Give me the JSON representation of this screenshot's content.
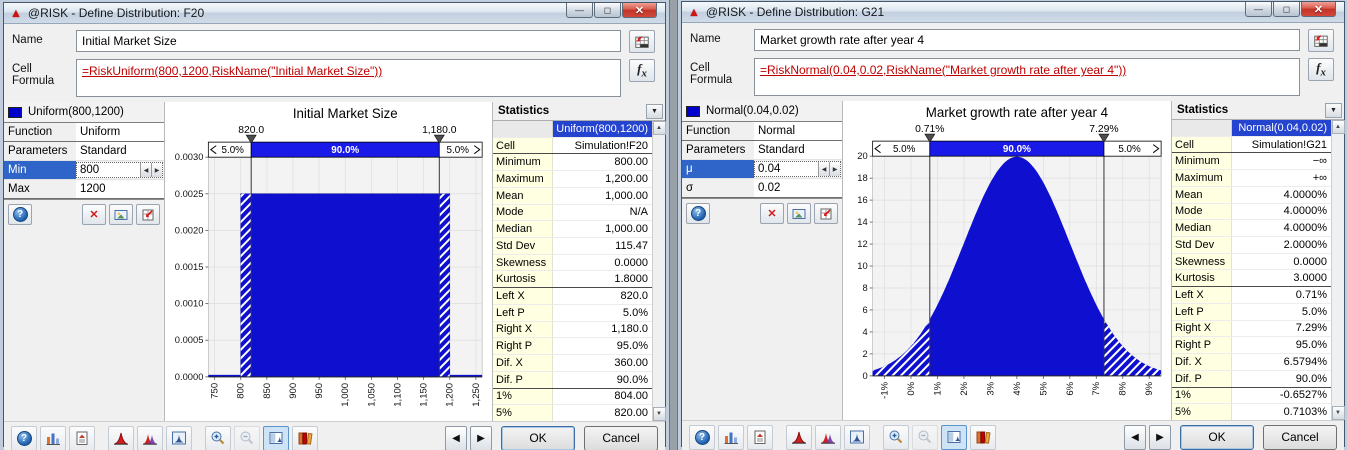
{
  "colors": {
    "formula_red": "#c00000",
    "selection_blue": "#2f65c8",
    "stats_header_blue": "#2443cf",
    "label_yellow": "#ffffe1",
    "swatch_blue": "#0000cc",
    "distribution_fill_blue": "#0f10cf",
    "band_blue": "#1a1ae8"
  },
  "windows": {
    "left": {
      "title": "@RISK - Define Distribution: F20",
      "name_label": "Name",
      "name_value": "Initial Market Size",
      "formula_label": "Cell Formula",
      "formula_value": "=RiskUniform(800,1200,RiskName(\"Initial Market Size\"))",
      "params": {
        "header": "Uniform(800,1200)",
        "function_label": "Function",
        "function_value": "Uniform",
        "parameters_label": "Parameters",
        "parameters_value": "Standard",
        "param1_label": "Min",
        "param1_value": "800",
        "param2_label": "Max",
        "param2_value": "1200"
      },
      "stats": {
        "header": "Statistics",
        "column_header": "Uniform(800,1200)",
        "rows": [
          [
            "Cell",
            "Simulation!F20"
          ],
          [
            "Minimum",
            "800.00"
          ],
          [
            "Maximum",
            "1,200.00"
          ],
          [
            "Mean",
            "1,000.00"
          ],
          [
            "Mode",
            "N/A"
          ],
          [
            "Median",
            "1,000.00"
          ],
          [
            "Std Dev",
            "115.47"
          ],
          [
            "Skewness",
            "0.0000"
          ],
          [
            "Kurtosis",
            "1.8000"
          ],
          [
            "Left X",
            "820.0"
          ],
          [
            "Left P",
            "5.0%"
          ],
          [
            "Right X",
            "1,180.0"
          ],
          [
            "Right P",
            "95.0%"
          ],
          [
            "Dif. X",
            "360.00"
          ],
          [
            "Dif. P",
            "90.0%"
          ],
          [
            "1%",
            "804.00"
          ],
          [
            "5%",
            "820.00"
          ]
        ]
      },
      "buttons": {
        "ok": "OK",
        "cancel": "Cancel"
      }
    },
    "right": {
      "title": "@RISK - Define Distribution: G21",
      "name_label": "Name",
      "name_value": "Market growth rate after year 4",
      "formula_label": "Cell Formula",
      "formula_value": "=RiskNormal(0.04,0.02,RiskName(\"Market growth rate after year 4\"))",
      "params": {
        "header": "Normal(0.04,0.02)",
        "function_label": "Function",
        "function_value": "Normal",
        "parameters_label": "Parameters",
        "parameters_value": "Standard",
        "param1_label": "μ",
        "param1_value": "0.04",
        "param2_label": "σ",
        "param2_value": "0.02"
      },
      "stats": {
        "header": "Statistics",
        "column_header": "Normal(0.04,0.02)",
        "rows": [
          [
            "Cell",
            "Simulation!G21"
          ],
          [
            "Minimum",
            "−∞"
          ],
          [
            "Maximum",
            "+∞"
          ],
          [
            "Mean",
            "4.0000%"
          ],
          [
            "Mode",
            "4.0000%"
          ],
          [
            "Median",
            "4.0000%"
          ],
          [
            "Std Dev",
            "2.0000%"
          ],
          [
            "Skewness",
            "0.0000"
          ],
          [
            "Kurtosis",
            "3.0000"
          ],
          [
            "Left X",
            "0.71%"
          ],
          [
            "Left P",
            "5.0%"
          ],
          [
            "Right X",
            "7.29%"
          ],
          [
            "Right P",
            "95.0%"
          ],
          [
            "Dif. X",
            "6.5794%"
          ],
          [
            "Dif. P",
            "90.0%"
          ],
          [
            "1%",
            "-0.6527%"
          ],
          [
            "5%",
            "0.7103%"
          ]
        ]
      },
      "buttons": {
        "ok": "OK",
        "cancel": "Cancel"
      }
    }
  },
  "chart_data": [
    {
      "type": "area",
      "shape": "uniform",
      "title": "Initial Market Size",
      "xlabel": "",
      "ylabel": "",
      "xlim": [
        738,
        1262
      ],
      "ylim": [
        0,
        0.003
      ],
      "grid": true,
      "x_tick_values": [
        750,
        800,
        850,
        900,
        950,
        1000,
        1050,
        1100,
        1150,
        1200,
        1250
      ],
      "x_tick_labels": [
        "750",
        "800",
        "850",
        "900",
        "950",
        "1,000",
        "1,050",
        "1,100",
        "1,150",
        "1,200",
        "1,250"
      ],
      "y_tick_values": [
        0,
        0.0005,
        0.001,
        0.0015,
        0.002,
        0.0025,
        0.003
      ],
      "y_tick_labels": [
        "0.0000",
        "0.0005",
        "0.0010",
        "0.0015",
        "0.0020",
        "0.0025",
        "0.0030"
      ],
      "uniform": {
        "from": 800,
        "to": 1200,
        "density": 0.0025
      },
      "delimiters": {
        "left_x": 820,
        "right_x": 1180,
        "left_label": "820.0",
        "right_label": "1,180.0",
        "left_band": "5.0%",
        "mid_band": "90.0%",
        "right_band": "5.0%"
      },
      "fill_color": "#0f10cf",
      "band_color": "#1a1ae8",
      "margin_left": 44
    },
    {
      "type": "area",
      "shape": "normal",
      "title": "Market growth rate after year 4",
      "xlabel": "",
      "ylabel": "",
      "xlim": [
        -1.45,
        9.45
      ],
      "ylim": [
        0,
        20
      ],
      "grid": true,
      "x_tick_values": [
        -1,
        0,
        1,
        2,
        3,
        4,
        5,
        6,
        7,
        8,
        9
      ],
      "x_tick_labels": [
        "-1%",
        "0%",
        "1%",
        "2%",
        "3%",
        "4%",
        "5%",
        "6%",
        "7%",
        "8%",
        "9%"
      ],
      "y_tick_values": [
        0,
        2,
        4,
        6,
        8,
        10,
        12,
        14,
        16,
        18,
        20
      ],
      "y_tick_labels": [
        "0",
        "2",
        "4",
        "6",
        "8",
        "10",
        "12",
        "14",
        "16",
        "18",
        "20"
      ],
      "normal": {
        "mean": 4,
        "sd": 2,
        "peak": 19.95
      },
      "delimiters": {
        "left_x": 0.71,
        "right_x": 7.29,
        "left_label": "0.71%",
        "right_label": "7.29%",
        "left_band": "5.0%",
        "mid_band": "90.0%",
        "right_band": "5.0%"
      },
      "fill_color": "#0f10cf",
      "band_color": "#1a1ae8",
      "margin_left": 30
    }
  ]
}
